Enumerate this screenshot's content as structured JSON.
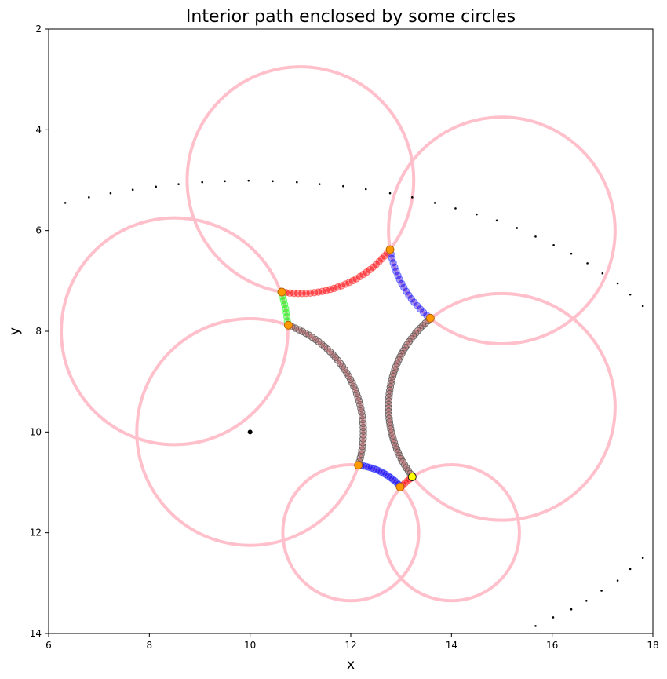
{
  "chart_data": {
    "type": "scatter",
    "title": "Interior path enclosed by some circles",
    "xlabel": "x",
    "ylabel": "y",
    "xlim": [
      6,
      18
    ],
    "ylim": [
      14,
      2
    ],
    "y_inverted": true,
    "grid": false,
    "xticks": [
      6,
      8,
      10,
      12,
      14,
      16,
      18
    ],
    "yticks": [
      2,
      4,
      6,
      8,
      10,
      12,
      14
    ],
    "colors": {
      "circle": "#ffc0cb",
      "red_arc": "#ff0000",
      "blue_arc": "#0000ff",
      "green_arc": "#00ff00",
      "dark_arc": "#555555",
      "junction": "#ff9900",
      "highlight": "#ffff00",
      "dots": "#000000"
    },
    "circles": [
      {
        "cx": 11.0,
        "cy": 5.0,
        "r": 2.25
      },
      {
        "cx": 15.0,
        "cy": 6.0,
        "r": 2.25
      },
      {
        "cx": 8.5,
        "cy": 8.0,
        "r": 2.25
      },
      {
        "cx": 10.0,
        "cy": 10.0,
        "r": 2.25
      },
      {
        "cx": 15.0,
        "cy": 9.5,
        "r": 2.25
      },
      {
        "cx": 12.0,
        "cy": 12.0,
        "r": 1.35
      },
      {
        "cx": 14.0,
        "cy": 12.0,
        "r": 1.35
      }
    ],
    "arcs": [
      {
        "color": "red",
        "cx": 11.0,
        "cy": 5.0,
        "r": 2.25,
        "from": [
          10.63,
          7.22
        ],
        "to": [
          12.78,
          6.38
        ],
        "n": 30
      },
      {
        "color": "blue",
        "cx": 15.0,
        "cy": 6.0,
        "r": 2.25,
        "from": [
          12.78,
          6.38
        ],
        "to": [
          13.58,
          7.74
        ],
        "n": 18
      },
      {
        "color": "dark",
        "cx": 15.0,
        "cy": 9.5,
        "r": 2.25,
        "from": [
          13.58,
          7.74
        ],
        "to": [
          13.22,
          10.89
        ],
        "n": 50
      },
      {
        "color": "red",
        "cx": 14.0,
        "cy": 12.0,
        "r": 1.35,
        "from": [
          13.22,
          10.89
        ],
        "to": [
          12.98,
          11.09
        ],
        "n": 5
      },
      {
        "color": "blue",
        "cx": 12.0,
        "cy": 12.0,
        "r": 1.35,
        "from": [
          12.98,
          11.09
        ],
        "to": [
          12.15,
          10.66
        ],
        "n": 18
      },
      {
        "color": "dark",
        "cx": 10.0,
        "cy": 10.0,
        "r": 2.25,
        "from": [
          12.15,
          10.66
        ],
        "to": [
          10.76,
          7.88
        ],
        "n": 45
      },
      {
        "color": "green",
        "cx": 8.5,
        "cy": 8.0,
        "r": 2.25,
        "from": [
          10.76,
          7.88
        ],
        "to": [
          10.63,
          7.22
        ],
        "n": 8
      }
    ],
    "junctions": [
      {
        "x": 10.63,
        "y": 7.22
      },
      {
        "x": 12.78,
        "y": 6.38
      },
      {
        "x": 13.58,
        "y": 7.74
      },
      {
        "x": 12.98,
        "y": 11.09
      },
      {
        "x": 12.15,
        "y": 10.66
      },
      {
        "x": 10.76,
        "y": 7.88
      }
    ],
    "highlight_point": {
      "x": 13.22,
      "y": 10.89
    },
    "center_point": {
      "x": 10.0,
      "y": 10.0
    },
    "dotted_curve_top": [
      [
        6.33,
        5.45
      ],
      [
        6.8,
        5.34
      ],
      [
        7.23,
        5.26
      ],
      [
        7.67,
        5.19
      ],
      [
        8.13,
        5.13
      ],
      [
        8.58,
        5.08
      ],
      [
        9.05,
        5.04
      ],
      [
        9.5,
        5.02
      ],
      [
        9.97,
        5.01
      ],
      [
        10.45,
        5.02
      ],
      [
        10.93,
        5.04
      ],
      [
        11.38,
        5.08
      ],
      [
        11.85,
        5.12
      ],
      [
        12.3,
        5.18
      ],
      [
        12.78,
        5.26
      ],
      [
        13.22,
        5.34
      ],
      [
        13.67,
        5.45
      ],
      [
        14.08,
        5.56
      ],
      [
        14.5,
        5.68
      ],
      [
        14.9,
        5.8
      ],
      [
        15.3,
        5.95
      ],
      [
        15.67,
        6.12
      ],
      [
        16.03,
        6.29
      ],
      [
        16.38,
        6.46
      ],
      [
        16.7,
        6.65
      ],
      [
        17.0,
        6.85
      ],
      [
        17.3,
        7.05
      ],
      [
        17.55,
        7.27
      ],
      [
        17.8,
        7.5
      ]
    ],
    "dotted_curve_bottom": [
      [
        15.67,
        13.85
      ],
      [
        16.02,
        13.68
      ],
      [
        16.38,
        13.52
      ],
      [
        16.68,
        13.35
      ],
      [
        16.98,
        13.15
      ],
      [
        17.3,
        12.95
      ],
      [
        17.55,
        12.72
      ],
      [
        17.8,
        12.5
      ]
    ]
  }
}
